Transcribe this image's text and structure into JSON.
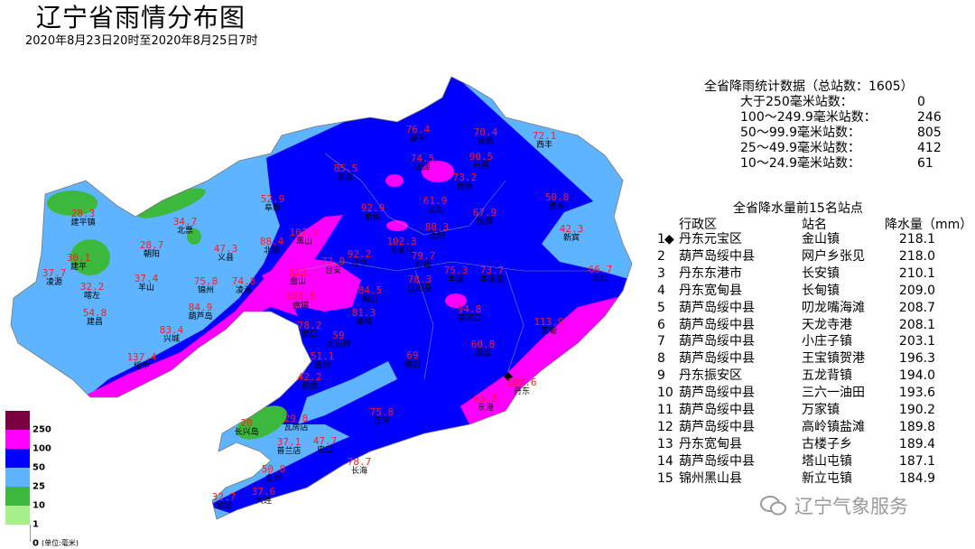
{
  "header": {
    "title": "辽宁省雨情分布图",
    "subtitle": "2020年8月23日20时至2020年8月25日7时"
  },
  "stats": {
    "title": "全省降雨统计数据（总站数：1605）",
    "rows": [
      {
        "label": "大于250毫米站数：",
        "count": "0"
      },
      {
        "label": "100～249.9毫米站数：",
        "count": "246"
      },
      {
        "label": "50～99.9毫米站数：",
        "count": "805"
      },
      {
        "label": "25～49.9毫米站数：",
        "count": "412"
      },
      {
        "label": "10～24.9毫米站数：",
        "count": "61"
      }
    ]
  },
  "top15": {
    "title": "全省降水量前15名站点",
    "headers": {
      "district": "行政区",
      "station": "站名",
      "amount": "降水量（mm）"
    },
    "rows": [
      {
        "rank": "1",
        "marker": "◆",
        "district": "丹东元宝区",
        "station": "金山镇",
        "amount": "218.1"
      },
      {
        "rank": "2",
        "district": "葫芦岛绥中县",
        "station": "网户乡张见",
        "amount": "218.0"
      },
      {
        "rank": "3",
        "district": "丹东东港市",
        "station": "长安镇",
        "amount": "210.1"
      },
      {
        "rank": "4",
        "district": "丹东宽甸县",
        "station": "长甸镇",
        "amount": "209.0"
      },
      {
        "rank": "5",
        "district": "葫芦岛绥中县",
        "station": "叨龙嘴海滩",
        "amount": "208.7"
      },
      {
        "rank": "6",
        "district": "葫芦岛绥中县",
        "station": "天龙寺港",
        "amount": "208.1"
      },
      {
        "rank": "7",
        "district": "葫芦岛绥中县",
        "station": "小庄子镇",
        "amount": "203.1"
      },
      {
        "rank": "8",
        "district": "葫芦岛绥中县",
        "station": "王宝镇贺港",
        "amount": "196.3"
      },
      {
        "rank": "9",
        "district": "丹东振安区",
        "station": "五龙背镇",
        "amount": "194.0"
      },
      {
        "rank": "10",
        "district": "葫芦岛绥中县",
        "station": "三六一油田",
        "amount": "193.6"
      },
      {
        "rank": "11",
        "district": "葫芦岛绥中县",
        "station": "万家镇",
        "amount": "190.2"
      },
      {
        "rank": "12",
        "district": "葫芦岛绥中县",
        "station": "高岭镇盐滩",
        "amount": "189.8"
      },
      {
        "rank": "13",
        "district": "丹东宽甸县",
        "station": "古楼子乡",
        "amount": "189.4"
      },
      {
        "rank": "14",
        "district": "葫芦岛绥中县",
        "station": "塔山屯镇",
        "amount": "187.1"
      },
      {
        "rank": "15",
        "district": "锦州黑山县",
        "station": "新立屯镇",
        "amount": "184.9"
      }
    ]
  },
  "legend": {
    "bins": [
      {
        "label": "250",
        "color": "#7a0040"
      },
      {
        "label": "100",
        "color": "#ff00ff"
      },
      {
        "label": "50",
        "color": "#0000ff"
      },
      {
        "label": "25",
        "color": "#5fb4ff"
      },
      {
        "label": "10",
        "color": "#3cb93c"
      },
      {
        "label": "1",
        "color": "#a8f08c"
      },
      {
        "label": "0",
        "color": "#ffffff"
      }
    ],
    "unit": "(单位:毫米)"
  },
  "stations": [
    {
      "value": "28.3",
      "name": "建平镇"
    },
    {
      "value": "34.7",
      "name": "北票"
    },
    {
      "value": "28.7",
      "name": "朝阳"
    },
    {
      "value": "30.1",
      "name": "建平"
    },
    {
      "value": "37.7",
      "name": "凌源"
    },
    {
      "value": "32.2",
      "name": "喀左"
    },
    {
      "value": "37.4",
      "name": "羊山"
    },
    {
      "value": "47.3",
      "name": "义县"
    },
    {
      "value": "75.8",
      "name": "锦州"
    },
    {
      "value": "74.8",
      "name": "凌海"
    },
    {
      "value": "84.9",
      "name": "葫芦岛"
    },
    {
      "value": "54.8",
      "name": "建昌"
    },
    {
      "value": "83.4",
      "name": "兴城"
    },
    {
      "value": "137.4",
      "name": "绥中"
    },
    {
      "value": "76.4",
      "name": "康平"
    },
    {
      "value": "70.4",
      "name": "昌图"
    },
    {
      "value": "72.1",
      "name": "西丰"
    },
    {
      "value": "74.5",
      "name": "法库"
    },
    {
      "value": "90.5",
      "name": "开原"
    },
    {
      "value": "85.5",
      "name": "彰武"
    },
    {
      "value": "73.2",
      "name": "铁岭"
    },
    {
      "value": "52.9",
      "name": "阜新"
    },
    {
      "value": "61.9",
      "name": "沈北"
    },
    {
      "value": "50.8",
      "name": "清原"
    },
    {
      "value": "92.9",
      "name": "新民"
    },
    {
      "value": "67.9",
      "name": "抚顺"
    },
    {
      "value": "88.3",
      "name": "沈阳"
    },
    {
      "value": "107.7",
      "name": "黑山"
    },
    {
      "value": "88.4",
      "name": "北镇"
    },
    {
      "value": "102.3",
      "name": "苏家屯"
    },
    {
      "value": "42.3",
      "name": "新宾"
    },
    {
      "value": "92.2",
      "name": "辽中"
    },
    {
      "value": "77.9",
      "name": "台安"
    },
    {
      "value": "79.7",
      "name": "灯塔"
    },
    {
      "value": "75.3",
      "name": "本溪"
    },
    {
      "value": "73.7",
      "name": "本溪县"
    },
    {
      "value": "66.7",
      "name": "桓仁"
    },
    {
      "value": "112",
      "name": "盘山"
    },
    {
      "value": "78.3",
      "name": "辽阳县"
    },
    {
      "value": "84.5",
      "name": "鞍山"
    },
    {
      "value": "101.5",
      "name": "盘锦"
    },
    {
      "value": "81.3",
      "name": "海城"
    },
    {
      "value": "94.8",
      "name": "草河口"
    },
    {
      "value": "113.9",
      "name": "宽甸"
    },
    {
      "value": "78.2",
      "name": "营口"
    },
    {
      "value": "59",
      "name": "大石桥"
    },
    {
      "value": "60.8",
      "name": "凤城"
    },
    {
      "value": "51.1",
      "name": "盖州"
    },
    {
      "value": "69",
      "name": "岫岩"
    },
    {
      "value": "42.2",
      "name": "熊岳"
    },
    {
      "value": "109.6",
      "name": "丹东"
    },
    {
      "value": "65.5",
      "name": "东港"
    },
    {
      "value": "75.8",
      "name": "庄河"
    },
    {
      "value": "20",
      "name": "长兴岛"
    },
    {
      "value": "29.8",
      "name": "瓦房店"
    },
    {
      "value": "37.1",
      "name": "普兰店"
    },
    {
      "value": "47.7",
      "name": "皮口"
    },
    {
      "value": "78.7",
      "name": "长海"
    },
    {
      "value": "50.8",
      "name": "金州"
    },
    {
      "value": "37.6",
      "name": "大连"
    },
    {
      "value": "32.7",
      "name": "旅顺"
    }
  ],
  "logo": {
    "text": "辽宁气象服务",
    "icon": "wechat-icon"
  }
}
